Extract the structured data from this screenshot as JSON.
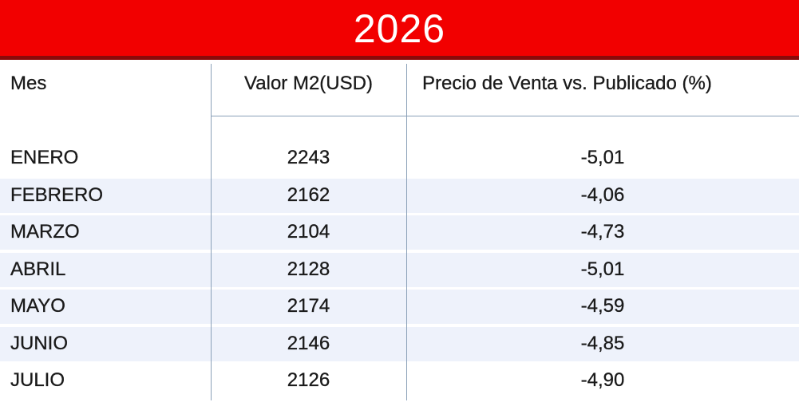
{
  "header": {
    "title": "2026"
  },
  "table": {
    "columns": [
      "Mes",
      "Valor M2(USD)",
      "Precio de Venta vs. Publicado (%)"
    ],
    "rows": [
      [
        "ENERO",
        "2243",
        "-5,01"
      ],
      [
        "FEBRERO",
        "2162",
        "-4,06"
      ],
      [
        "MARZO",
        "2104",
        "-4,73"
      ],
      [
        "ABRIL",
        "2128",
        "-5,01"
      ],
      [
        "MAYO",
        "2174",
        "-4,59"
      ],
      [
        "JUNIO",
        "2146",
        "-4,85"
      ],
      [
        "JULIO",
        "2126",
        "-4,90"
      ]
    ]
  }
}
